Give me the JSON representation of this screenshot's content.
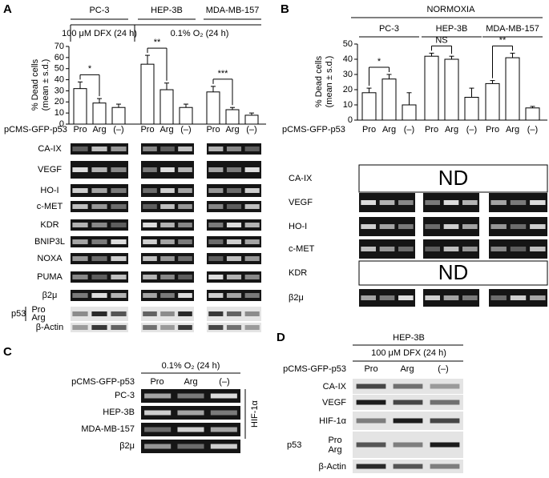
{
  "chart_data": [
    {
      "type": "bar",
      "panel_label": "A",
      "groups": [
        "PC-3",
        "HEP-3B",
        "MDA-MB-157"
      ],
      "conditions": [
        "100 μM DFX (24 h)",
        "0.1% O₂ (24 h)"
      ],
      "y_label": [
        "% Dead cells",
        "(mean ± s.d.)"
      ],
      "x_label": "pCMS-GFP-p53",
      "categories": [
        "Pro",
        "Arg",
        "(–)",
        "Pro",
        "Arg",
        "(–)",
        "Pro",
        "Arg",
        "(–)"
      ],
      "values": [
        32,
        19,
        15,
        54,
        31,
        15,
        29,
        13,
        8
      ],
      "errors": [
        6,
        4,
        3,
        8,
        6,
        3,
        5,
        2,
        2
      ],
      "color": "#ffffff",
      "significance": [
        "*",
        "**",
        "***"
      ],
      "ylim": [
        0,
        70
      ],
      "yticks": [
        0,
        10,
        20,
        30,
        40,
        50,
        60,
        70
      ],
      "blot_rows": [
        {
          "label": "CA-IX"
        },
        {
          "label": "VEGF"
        },
        {
          "label": "HO-I"
        },
        {
          "label": "c-MET"
        },
        {
          "label": "KDR"
        },
        {
          "label": "BNIP3L"
        },
        {
          "label": "NOXA"
        },
        {
          "label": "PUMA"
        },
        {
          "label": "β2μ"
        },
        {
          "label": "p53",
          "bands": [
            "Pro",
            "Arg"
          ]
        },
        {
          "label": "β-Actin"
        }
      ]
    },
    {
      "type": "bar",
      "panel_label": "B",
      "condition": "NORMOXIA",
      "groups": [
        "PC-3",
        "HEP-3B",
        "MDA-MB-157"
      ],
      "y_label": [
        "% Dead cells",
        "(mean ± s.d.)"
      ],
      "x_label": "pCMS-GFP-p53",
      "categories": [
        "Pro",
        "Arg",
        "(–)",
        "Pro",
        "Arg",
        "(–)",
        "Pro",
        "Arg",
        "(–)"
      ],
      "values": [
        18,
        27,
        10,
        42,
        40,
        15,
        24,
        41,
        8
      ],
      "errors": [
        3,
        3,
        8,
        2,
        2,
        6,
        2,
        3,
        1
      ],
      "color": "#ffffff",
      "significance": [
        "*",
        "NS",
        "**"
      ],
      "ylim": [
        0,
        50
      ],
      "yticks": [
        0,
        10,
        20,
        30,
        40,
        50
      ],
      "blot_rows": [
        {
          "label": "CA-IX",
          "note": "ND"
        },
        {
          "label": "VEGF"
        },
        {
          "label": "HO-I"
        },
        {
          "label": "c-MET"
        },
        {
          "label": "KDR",
          "note": "ND"
        },
        {
          "label": "β2μ"
        }
      ]
    }
  ],
  "panel_c": {
    "panel_label": "C",
    "condition": "0.1% O₂ (24 h)",
    "x_label": "pCMS-GFP-p53",
    "lanes": [
      "Pro",
      "Arg",
      "(–)"
    ],
    "rows": [
      "PC-3",
      "HEP-3B",
      "MDA-MB-157",
      "β2μ"
    ],
    "bracket_label": "HIF-1α"
  },
  "panel_d": {
    "panel_label": "D",
    "title": "HEP-3B",
    "condition": "100 μM DFX (24 h)",
    "x_label": "pCMS-GFP-p53",
    "lanes": [
      "Pro",
      "Arg",
      "(–)"
    ],
    "rows": [
      {
        "label": "CA-IX"
      },
      {
        "label": "VEGF"
      },
      {
        "label": "HIF-1α"
      },
      {
        "label": "p53",
        "bands": [
          "Pro",
          "Arg"
        ]
      },
      {
        "label": "β-Actin"
      }
    ]
  }
}
